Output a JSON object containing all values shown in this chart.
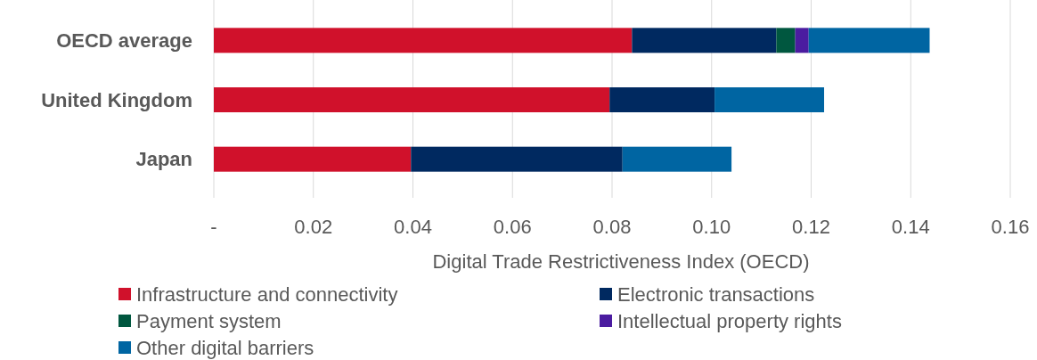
{
  "chart_data": {
    "type": "bar",
    "orientation": "horizontal",
    "stacked": true,
    "categories": [
      "OECD average",
      "United Kingdom",
      "Japan"
    ],
    "series": [
      {
        "name": "Infrastructure and connectivity",
        "color": "#d0112b",
        "values": [
          0.084,
          0.0795,
          0.0396
        ]
      },
      {
        "name": "Electronic transactions",
        "color": "#002960",
        "values": [
          0.029,
          0.0211,
          0.0425
        ]
      },
      {
        "name": "Payment system",
        "color": "#00573f",
        "values": [
          0.0038,
          0,
          0
        ]
      },
      {
        "name": "Intellectual property rights",
        "color": "#4b1ca0",
        "values": [
          0.0027,
          0,
          0
        ]
      },
      {
        "name": "Other digital barriers",
        "color": "#0065a2",
        "values": [
          0.0243,
          0.022,
          0.0219
        ]
      }
    ],
    "xlabel": "Digital Trade Restrictiveness Index (OECD)",
    "xlim": [
      0,
      0.16
    ],
    "xticks": [
      {
        "value": 0,
        "label": "-"
      },
      {
        "value": 0.02,
        "label": "0.02"
      },
      {
        "value": 0.04,
        "label": "0.04"
      },
      {
        "value": 0.06,
        "label": "0.06"
      },
      {
        "value": 0.08,
        "label": "0.08"
      },
      {
        "value": 0.1,
        "label": "0.10"
      },
      {
        "value": 0.12,
        "label": "0.12"
      },
      {
        "value": 0.14,
        "label": "0.14"
      },
      {
        "value": 0.16,
        "label": "0.16"
      }
    ],
    "grid": "x",
    "legend": "bottom"
  }
}
